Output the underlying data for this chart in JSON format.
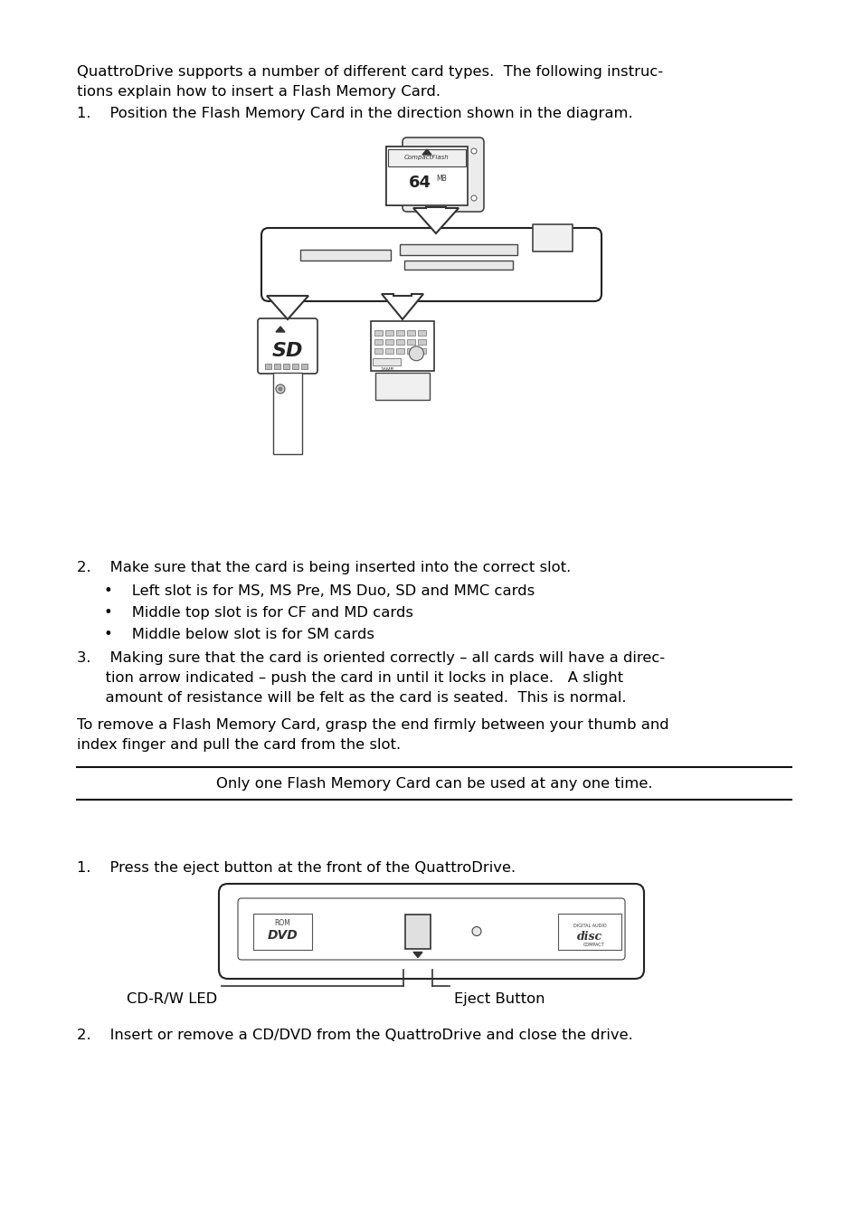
{
  "bg_color": "#ffffff",
  "text_color": "#000000",
  "para1_line1": "QuattroDrive supports a number of different card types.  The following instruc-",
  "para1_line2": "tions explain how to insert a Flash Memory Card.",
  "item1": "1.    Position the Flash Memory Card in the direction shown in the diagram.",
  "item2_header": "2.    Make sure that the card is being inserted into the correct slot.",
  "bullet1": "•    Left slot is for MS, MS Pre, MS Duo, SD and MMC cards",
  "bullet2": "•    Middle top slot is for CF and MD cards",
  "bullet3": "•    Middle below slot is for SM cards",
  "item3_line1": "3.    Making sure that the card is oriented correctly – all cards will have a direc-",
  "item3_line2": "      tion arrow indicated – push the card in until it locks in place.   A slight",
  "item3_line3": "      amount of resistance will be felt as the card is seated.  This is normal.",
  "remove_line1": "To remove a Flash Memory Card, grasp the end firmly between your thumb and",
  "remove_line2": "index finger and pull the card from the slot.",
  "note_text": "Only one Flash Memory Card can be used at any one time.",
  "cd_item1": "1.    Press the eject button at the front of the QuattroDrive.",
  "cd_item2": "2.    Insert or remove a CD/DVD from the QuattroDrive and close the drive.",
  "cd_label_left": "CD-R/W LED",
  "cd_label_right": "Eject Button"
}
